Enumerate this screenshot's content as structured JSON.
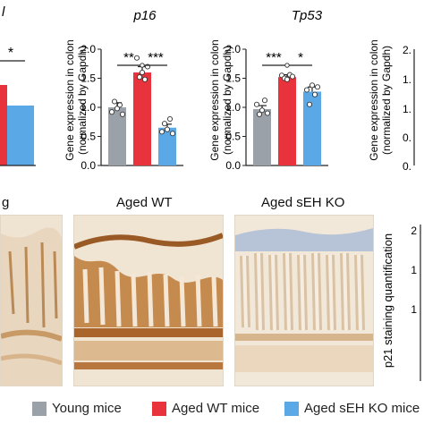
{
  "colors": {
    "young": "#9aa1a8",
    "aged_wt": "#e8323c",
    "aged_seh_ko": "#5aa9e6"
  },
  "chart_data": [
    {
      "type": "bar",
      "title": "p16",
      "ylabel_line1": "Gene expression in colon",
      "ylabel_line2": "(normalized by Gapdh)",
      "ylim": [
        0,
        2.0
      ],
      "yticks": [
        "0.0",
        "0.5",
        "1.0",
        "1.5",
        "2.0"
      ],
      "categories": [
        "Young mice",
        "Aged WT mice",
        "Aged sEH KO mice"
      ],
      "values": [
        1.0,
        1.6,
        0.65
      ],
      "errors": [
        0.08,
        0.1,
        0.06
      ],
      "points": [
        [
          0.92,
          1.1,
          0.98,
          1.04,
          0.88
        ],
        [
          1.85,
          1.52,
          1.6,
          1.48,
          1.7
        ],
        [
          0.58,
          0.72,
          0.62,
          0.8,
          0.55
        ]
      ],
      "significance": [
        {
          "from": 0,
          "to": 1,
          "label": "**"
        },
        {
          "from": 1,
          "to": 2,
          "label": "***"
        }
      ]
    },
    {
      "type": "bar",
      "title": "Tp53",
      "ylabel_line1": "Gene expression in colon",
      "ylabel_line2": "(normalized by Gapdh)",
      "ylim": [
        0,
        2.0
      ],
      "yticks": [
        "0.0",
        "0.5",
        "1.0",
        "1.5",
        "2.0"
      ],
      "categories": [
        "Young mice",
        "Aged WT mice",
        "Aged sEH KO mice"
      ],
      "values": [
        0.97,
        1.52,
        1.27
      ],
      "errors": [
        0.06,
        0.04,
        0.08
      ],
      "points": [
        [
          1.05,
          0.88,
          0.95,
          1.12,
          0.9
        ],
        [
          1.55,
          1.5,
          1.48,
          1.56,
          1.53
        ],
        [
          1.3,
          1.05,
          1.38,
          1.22,
          1.35
        ]
      ],
      "significance": [
        {
          "from": 0,
          "to": 1,
          "label": "***"
        },
        {
          "from": 1,
          "to": 2,
          "label": "*"
        }
      ]
    }
  ],
  "partial": {
    "left_title_fragment": "l",
    "left_sig": "*",
    "right_ylabel_line1": "Gene expression in colon",
    "right_ylabel_line2": "(normalized by Gapdh)",
    "right_yticks": [
      "2.",
      "1.",
      "1.",
      "0.",
      "0."
    ],
    "p21_ylabel": "p21 staining quantification",
    "p21_ticks": [
      "2",
      "1",
      "1"
    ]
  },
  "micrographs": {
    "left_title": "g",
    "middle_title": "Aged WT",
    "right_title": "Aged sEH KO"
  },
  "legend": [
    {
      "label": "Young mice",
      "color": "#9aa1a8"
    },
    {
      "label": "Aged WT mice",
      "color": "#e8323c"
    },
    {
      "label": "Aged sEH KO mice",
      "color": "#5aa9e6"
    }
  ]
}
